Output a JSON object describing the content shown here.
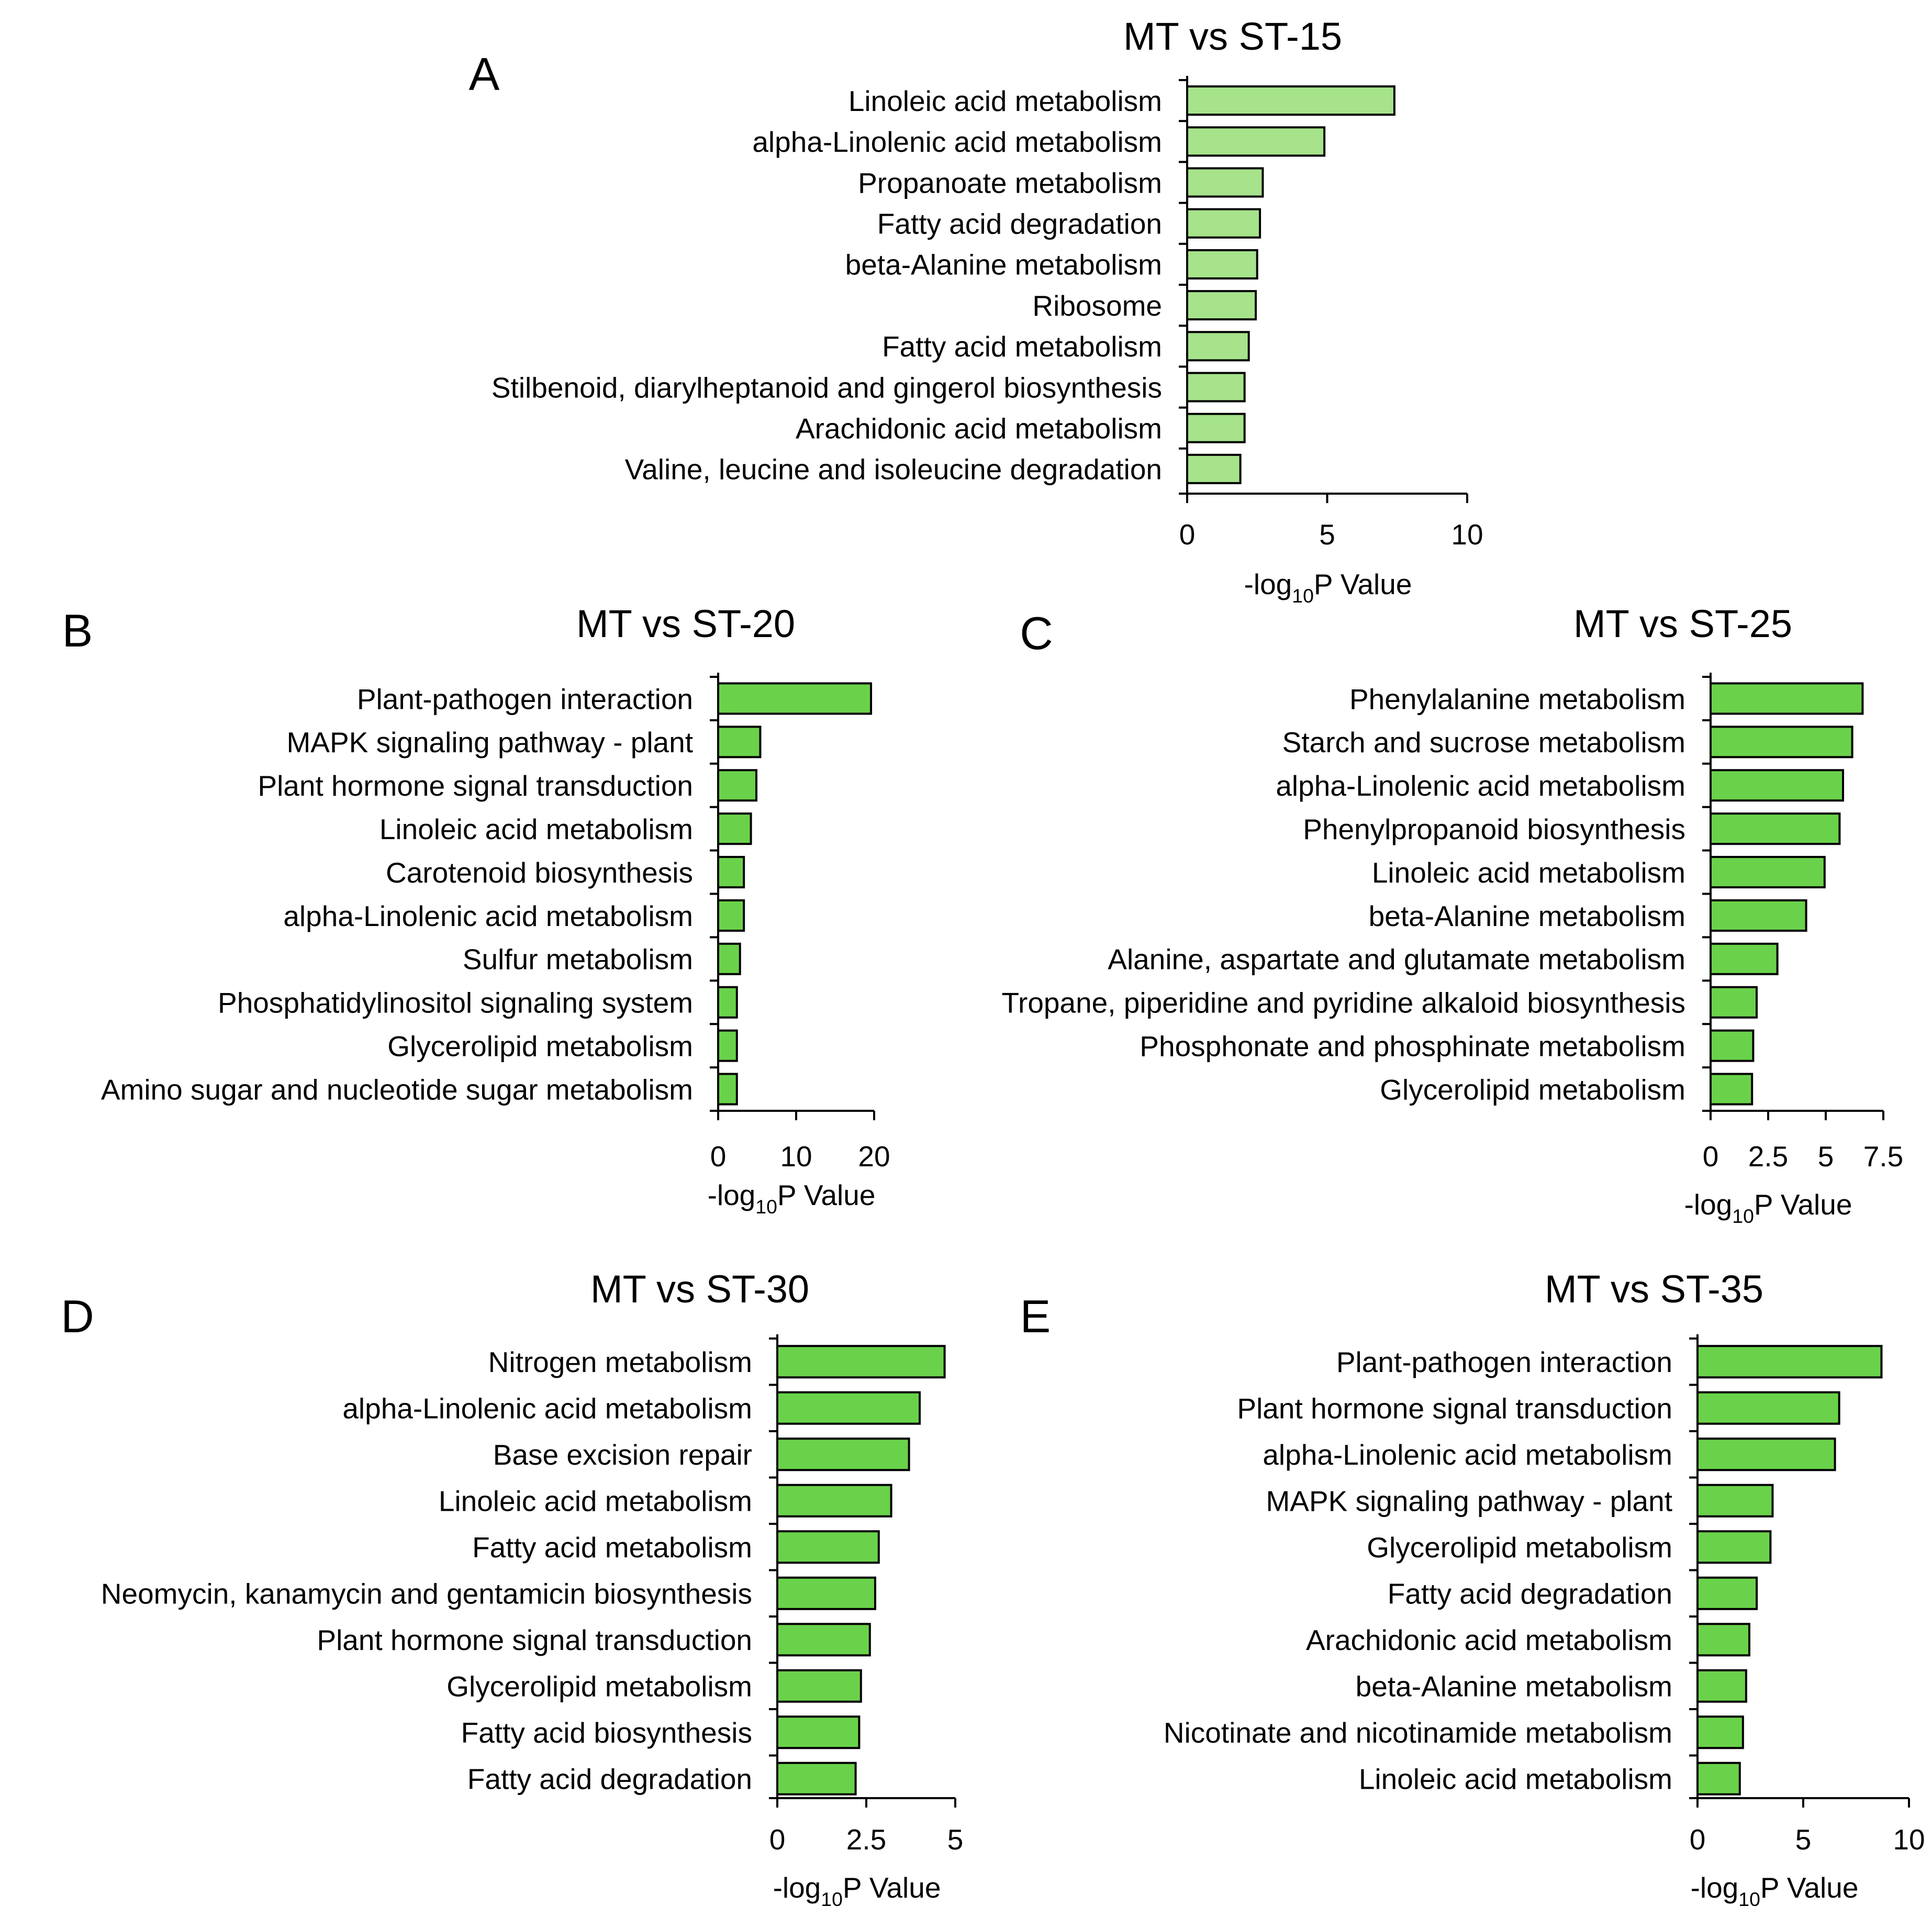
{
  "figure": {
    "colors": {
      "bar_light": "#a6e38a",
      "bar_dark": "#6ad24a",
      "stroke": "#000000",
      "background": "#ffffff"
    }
  },
  "chart_data": [
    {
      "id": "A",
      "panel_letter": "A",
      "type": "bar",
      "orientation": "horizontal",
      "title": "MT vs ST-15",
      "xlabel": "-log10P Value",
      "xlim": [
        0,
        10
      ],
      "xticks": [
        "0",
        "5",
        "10"
      ],
      "bar_color": "#a6e38a",
      "categories": [
        "Linoleic acid metabolism",
        "alpha-Linolenic acid metabolism",
        "Propanoate metabolism",
        "Fatty acid degradation",
        "beta-Alanine metabolism",
        "Ribosome",
        "Fatty acid metabolism",
        "Stilbenoid, diarylheptanoid and gingerol biosynthesis",
        "Arachidonic acid metabolism",
        "Valine, leucine and isoleucine degradation"
      ],
      "values": [
        7.4,
        4.9,
        2.7,
        2.6,
        2.5,
        2.45,
        2.2,
        2.05,
        2.05,
        1.9
      ]
    },
    {
      "id": "B",
      "panel_letter": "B",
      "type": "bar",
      "orientation": "horizontal",
      "title": "MT vs ST-20",
      "xlabel": "-log10P Value",
      "xlim": [
        0,
        20
      ],
      "xticks": [
        "0",
        "10",
        "20"
      ],
      "bar_color": "#6ad24a",
      "categories": [
        "Plant-pathogen interaction",
        "MAPK signaling pathway - plant",
        "Plant hormone signal transduction",
        "Linoleic acid metabolism",
        "Carotenoid biosynthesis",
        "alpha-Linolenic acid metabolism",
        "Sulfur metabolism",
        "Phosphatidylinositol signaling system",
        "Glycerolipid metabolism",
        "Amino sugar and nucleotide sugar metabolism"
      ],
      "values": [
        19.6,
        5.4,
        4.9,
        4.2,
        3.3,
        3.3,
        2.8,
        2.4,
        2.4,
        2.4
      ]
    },
    {
      "id": "C",
      "panel_letter": "C",
      "type": "bar",
      "orientation": "horizontal",
      "title": "MT vs ST-25",
      "xlabel": "-log10P Value",
      "xlim": [
        0,
        7.5
      ],
      "xticks": [
        "0",
        "2.5",
        "5",
        "7.5"
      ],
      "bar_color": "#6ad24a",
      "categories": [
        "Phenylalanine metabolism",
        "Starch and sucrose metabolism",
        "alpha-Linolenic acid metabolism",
        "Phenylpropanoid biosynthesis",
        "Linoleic acid metabolism",
        "beta-Alanine metabolism",
        "Alanine, aspartate and glutamate metabolism",
        "Tropane, piperidine and pyridine alkaloid biosynthesis",
        "Phosphonate and phosphinate metabolism",
        "Glycerolipid metabolism"
      ],
      "values": [
        6.6,
        6.15,
        5.75,
        5.6,
        4.95,
        4.15,
        2.9,
        2.0,
        1.85,
        1.8
      ]
    },
    {
      "id": "D",
      "panel_letter": "D",
      "type": "bar",
      "orientation": "horizontal",
      "title": "MT vs ST-30",
      "xlabel": "-log10P Value",
      "xlim": [
        0,
        5
      ],
      "xticks": [
        "0",
        "2.5",
        "5"
      ],
      "bar_color": "#6ad24a",
      "categories": [
        "Nitrogen metabolism",
        "alpha-Linolenic acid metabolism",
        "Base excision repair",
        "Linoleic acid metabolism",
        "Fatty acid metabolism",
        "Neomycin, kanamycin and gentamicin biosynthesis",
        "Plant hormone signal transduction",
        "Glycerolipid metabolism",
        "Fatty acid biosynthesis",
        "Fatty acid degradation"
      ],
      "values": [
        4.7,
        4.0,
        3.7,
        3.2,
        2.85,
        2.75,
        2.6,
        2.35,
        2.3,
        2.2
      ]
    },
    {
      "id": "E",
      "panel_letter": "E",
      "type": "bar",
      "orientation": "horizontal",
      "title": "MT vs ST-35",
      "xlabel": "-log10P Value",
      "xlim": [
        0,
        10
      ],
      "xticks": [
        "0",
        "5",
        "10"
      ],
      "bar_color": "#6ad24a",
      "categories": [
        "Plant-pathogen interaction",
        "Plant hormone signal transduction",
        "alpha-Linolenic acid metabolism",
        "MAPK signaling pathway - plant",
        "Glycerolipid metabolism",
        "Fatty acid degradation",
        "Arachidonic acid metabolism",
        "beta-Alanine metabolism",
        "Nicotinate and nicotinamide metabolism",
        "Linoleic acid metabolism"
      ],
      "values": [
        8.7,
        6.7,
        6.5,
        3.55,
        3.45,
        2.8,
        2.45,
        2.3,
        2.15,
        2.0
      ]
    }
  ]
}
